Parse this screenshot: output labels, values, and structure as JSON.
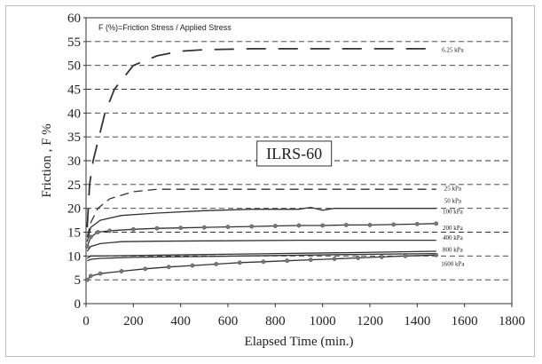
{
  "chart_data": {
    "type": "line",
    "title": "",
    "note": "F (%)=Friction Stress / Applied Stress",
    "label_box": "ILRS-60",
    "xlabel": "Elapsed Time  (min.)",
    "ylabel": "Friction , F %",
    "xlim": [
      0,
      1800
    ],
    "ylim": [
      0,
      60
    ],
    "xticks": [
      "0",
      "200",
      "400",
      "600",
      "800",
      "1000",
      "1200",
      "1400",
      "1600",
      "1800"
    ],
    "yticks": [
      "0",
      "5",
      "10",
      "15",
      "20",
      "25",
      "30",
      "35",
      "40",
      "45",
      "50",
      "55",
      "60"
    ],
    "grid": "horizontal-dashed",
    "series": [
      {
        "name": "6.25 kPa",
        "style": "dashed-heavy",
        "markers": false,
        "x": [
          5,
          15,
          30,
          60,
          80,
          120,
          200,
          300,
          400,
          500,
          700,
          900,
          1100,
          1300,
          1480
        ],
        "y": [
          16,
          25,
          30,
          36,
          40,
          45,
          50,
          52,
          53,
          53.3,
          53.5,
          53.5,
          53.5,
          53.5,
          53.5
        ]
      },
      {
        "name": "25 kPa",
        "style": "dashed",
        "markers": false,
        "x": [
          5,
          20,
          50,
          100,
          200,
          300,
          500,
          800,
          1100,
          1480
        ],
        "y": [
          14,
          17,
          20,
          22,
          23.5,
          24,
          24,
          24,
          24,
          24
        ]
      },
      {
        "name": "50 kPa",
        "style": "solid",
        "markers": false,
        "x": [
          5,
          20,
          60,
          150,
          300,
          500,
          700,
          900,
          950,
          1000,
          1050,
          1200,
          1480
        ],
        "y": [
          13,
          16,
          17.5,
          18.5,
          19,
          19.5,
          19.8,
          19.8,
          20.2,
          19.6,
          20,
          20,
          20
        ]
      },
      {
        "name": "100 kPa",
        "style": "solid",
        "markers": true,
        "x": [
          5,
          20,
          50,
          100,
          200,
          300,
          400,
          500,
          600,
          700,
          800,
          900,
          1000,
          1100,
          1200,
          1300,
          1400,
          1480
        ],
        "y": [
          12,
          14,
          15,
          15.3,
          15.6,
          15.8,
          15.9,
          16,
          16.1,
          16.2,
          16.3,
          16.4,
          16.4,
          16.5,
          16.5,
          16.6,
          16.7,
          16.8
        ]
      },
      {
        "name": "200 kPa",
        "style": "solid",
        "markers": false,
        "x": [
          5,
          20,
          60,
          150,
          300,
          600,
          900,
          1200,
          1480
        ],
        "y": [
          11,
          12,
          12.6,
          13,
          13.1,
          13.2,
          13.3,
          13.3,
          13.3
        ]
      },
      {
        "name": "400 kPa",
        "style": "solid",
        "markers": false,
        "x": [
          5,
          20,
          60,
          200,
          500,
          800,
          1100,
          1480
        ],
        "y": [
          9.5,
          10,
          10,
          10.1,
          10.3,
          10.5,
          10.7,
          11
        ]
      },
      {
        "name": "800 kPa",
        "style": "solid",
        "markers": false,
        "x": [
          5,
          20,
          60,
          200,
          500,
          800,
          1100,
          1480
        ],
        "y": [
          9,
          9.3,
          9.5,
          9.7,
          9.9,
          10.1,
          10.3,
          10.5
        ]
      },
      {
        "name": "1600 kPa",
        "style": "solid",
        "markers": true,
        "x": [
          5,
          20,
          60,
          150,
          250,
          350,
          450,
          550,
          650,
          750,
          850,
          950,
          1050,
          1150,
          1250,
          1350,
          1480
        ],
        "y": [
          5,
          5.8,
          6.3,
          6.8,
          7.3,
          7.7,
          8,
          8.3,
          8.6,
          8.8,
          9,
          9.2,
          9.4,
          9.6,
          9.8,
          10,
          10.2
        ]
      }
    ],
    "series_labels": [
      {
        "text": "6.25 kPa",
        "y": 53.2
      },
      {
        "text": "25 kPa",
        "y": 24.1
      },
      {
        "text": "50 kPa",
        "y": 21.5
      },
      {
        "text": "100 kPa",
        "y": 19.3
      },
      {
        "text": "200 kPa",
        "y": 15.8
      },
      {
        "text": "400 kPa",
        "y": 13.8
      },
      {
        "text": "800 kPa",
        "y": 11.3
      },
      {
        "text": "1600 kPa",
        "y": 8.3
      }
    ]
  }
}
